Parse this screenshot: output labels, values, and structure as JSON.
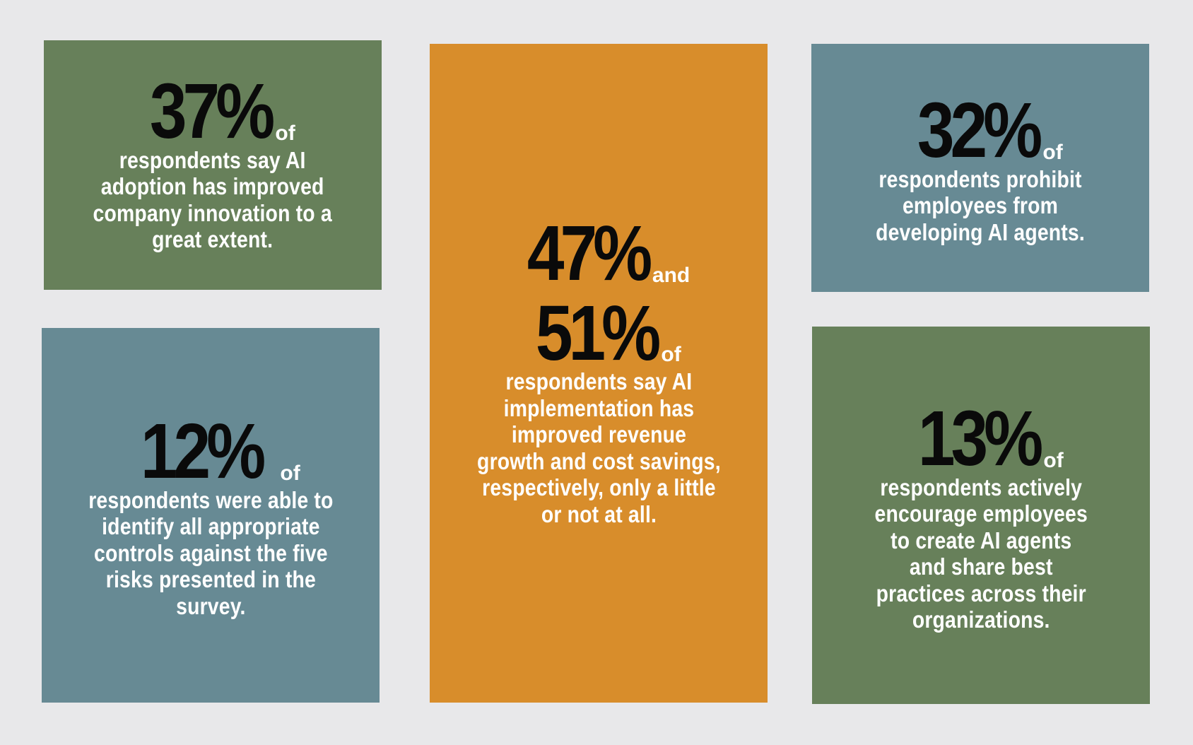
{
  "colors": {
    "background": "#e8e8ea",
    "green": "#67805a",
    "blue": "#678a94",
    "orange": "#d88d2b",
    "stat_text": "#0a0a0a",
    "body_text": "#ffffff"
  },
  "cards": {
    "innovation": {
      "stat": "37%",
      "connector": "of",
      "lines": [
        "respondents say AI",
        "adoption has improved",
        "company innovation to a",
        "great extent."
      ]
    },
    "controls": {
      "stat": "12%",
      "connector": "of",
      "lines": [
        "respondents were able to",
        "identify all appropriate",
        "controls against the five",
        "risks presented in the",
        "survey."
      ]
    },
    "revenue": {
      "stat_a": "47%",
      "connector_a": "and",
      "stat_b": "51%",
      "connector_b": "of",
      "lines": [
        "respondents say AI",
        "implementation has",
        "improved revenue",
        "growth and cost savings,",
        "respectively, only a little",
        "or not at all."
      ]
    },
    "prohibit": {
      "stat": "32%",
      "connector": "of",
      "lines": [
        "respondents prohibit",
        "employees from",
        "developing AI agents."
      ]
    },
    "encourage": {
      "stat": "13%",
      "connector": "of",
      "lines": [
        "respondents actively",
        "encourage employees",
        "to create AI agents",
        "and share best",
        "practices across their",
        "organizations."
      ]
    }
  }
}
